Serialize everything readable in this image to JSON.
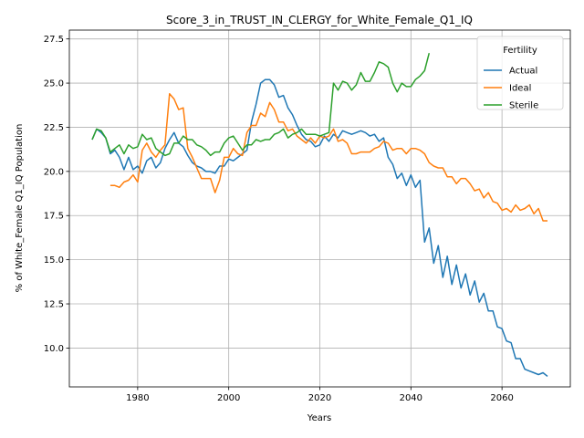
{
  "chart_data": {
    "type": "line",
    "title": "Score_3_in_TRUST_IN_CLERGY_for_White_Female_Q1_IQ",
    "xlabel": "Years",
    "ylabel": "% of White_Female Q1_IQ Population",
    "xlim": [
      1965,
      2075
    ],
    "ylim": [
      7.8,
      28.0
    ],
    "xticks": [
      1980,
      2000,
      2020,
      2040,
      2060
    ],
    "yticks": [
      10.0,
      12.5,
      15.0,
      17.5,
      20.0,
      22.5,
      25.0,
      27.5
    ],
    "xtick_labels": [
      "1980",
      "2000",
      "2020",
      "2040",
      "2060"
    ],
    "ytick_labels": [
      "10.0",
      "12.5",
      "15.0",
      "17.5",
      "20.0",
      "22.5",
      "25.0",
      "27.5"
    ],
    "grid": true,
    "legend": {
      "title": "Fertility",
      "placement": "upper right"
    },
    "series": [
      {
        "name": "Actual",
        "color": "#1f77b4",
        "x": [
          1970,
          1971,
          1972,
          1973,
          1974,
          1975,
          1976,
          1977,
          1978,
          1979,
          1980,
          1981,
          1982,
          1983,
          1984,
          1985,
          1986,
          1987,
          1988,
          1989,
          1990,
          1991,
          1992,
          1993,
          1994,
          1995,
          1996,
          1997,
          1998,
          1999,
          2000,
          2001,
          2002,
          2003,
          2004,
          2005,
          2006,
          2007,
          2008,
          2009,
          2010,
          2011,
          2012,
          2013,
          2014,
          2015,
          2016,
          2017,
          2018,
          2019,
          2020,
          2021,
          2022,
          2023,
          2024,
          2025,
          2026,
          2027,
          2028,
          2029,
          2030,
          2031,
          2032,
          2033,
          2034,
          2035,
          2036,
          2037,
          2038,
          2039,
          2040,
          2041,
          2042,
          2043,
          2044,
          2045,
          2046,
          2047,
          2048,
          2049,
          2050,
          2051,
          2052,
          2053,
          2054,
          2055,
          2056,
          2057,
          2058,
          2059,
          2060,
          2061,
          2062,
          2063,
          2064,
          2065,
          2066,
          2067,
          2068,
          2069,
          2070
        ],
        "y": [
          21.8,
          22.4,
          22.2,
          21.9,
          21.0,
          21.2,
          20.8,
          20.1,
          20.8,
          20.1,
          20.3,
          19.9,
          20.6,
          20.8,
          20.2,
          20.5,
          21.3,
          21.8,
          22.2,
          21.6,
          21.4,
          20.9,
          20.5,
          20.3,
          20.2,
          20.0,
          20.0,
          19.9,
          20.3,
          20.3,
          20.7,
          20.6,
          20.8,
          21.0,
          21.2,
          22.8,
          23.8,
          25.0,
          25.2,
          25.2,
          24.9,
          24.2,
          24.3,
          23.6,
          23.2,
          22.6,
          22.1,
          21.8,
          21.7,
          21.4,
          21.5,
          22.0,
          21.7,
          22.1,
          21.9,
          22.3,
          22.2,
          22.1,
          22.2,
          22.3,
          22.2,
          22.0,
          22.1,
          21.7,
          21.9,
          20.8,
          20.4,
          19.6,
          19.9,
          19.2,
          19.8,
          19.1,
          19.5,
          16.0,
          16.8,
          14.8,
          15.8,
          14.0,
          15.2,
          13.6,
          14.7,
          13.4,
          14.2,
          13.0,
          13.8,
          12.6,
          13.1,
          12.1,
          12.1,
          11.2,
          11.1,
          10.4,
          10.3,
          9.4,
          9.4,
          8.8,
          8.7,
          8.6,
          8.5,
          8.6,
          8.4
        ]
      },
      {
        "name": "Ideal",
        "color": "#ff7f0e",
        "x": [
          1974,
          1975,
          1976,
          1977,
          1978,
          1979,
          1980,
          1981,
          1982,
          1983,
          1984,
          1985,
          1986,
          1987,
          1988,
          1989,
          1990,
          1991,
          1992,
          1993,
          1994,
          1995,
          1996,
          1997,
          1998,
          1999,
          2000,
          2001,
          2002,
          2003,
          2004,
          2005,
          2006,
          2007,
          2008,
          2009,
          2010,
          2011,
          2012,
          2013,
          2014,
          2015,
          2016,
          2017,
          2018,
          2019,
          2020,
          2021,
          2022,
          2023,
          2024,
          2025,
          2026,
          2027,
          2028,
          2029,
          2030,
          2031,
          2032,
          2033,
          2034,
          2035,
          2036,
          2037,
          2038,
          2039,
          2040,
          2041,
          2042,
          2043,
          2044,
          2045,
          2046,
          2047,
          2048,
          2049,
          2050,
          2051,
          2052,
          2053,
          2054,
          2055,
          2056,
          2057,
          2058,
          2059,
          2060,
          2061,
          2062,
          2063,
          2064,
          2065,
          2066,
          2067,
          2068,
          2069,
          2070
        ],
        "y": [
          19.2,
          19.2,
          19.1,
          19.4,
          19.5,
          19.8,
          19.4,
          21.2,
          21.6,
          21.1,
          20.8,
          21.2,
          21.5,
          24.4,
          24.1,
          23.5,
          23.6,
          21.3,
          20.8,
          20.2,
          19.6,
          19.6,
          19.6,
          18.8,
          19.5,
          20.8,
          20.8,
          21.3,
          21.0,
          20.9,
          22.2,
          22.6,
          22.6,
          23.3,
          23.1,
          23.9,
          23.5,
          22.8,
          22.8,
          22.3,
          22.4,
          22.0,
          21.8,
          21.6,
          21.9,
          21.6,
          22.0,
          21.9,
          22.0,
          22.4,
          21.7,
          21.8,
          21.6,
          21.0,
          21.0,
          21.1,
          21.1,
          21.1,
          21.3,
          21.4,
          21.7,
          21.6,
          21.2,
          21.3,
          21.3,
          21.0,
          21.3,
          21.3,
          21.2,
          21.0,
          20.5,
          20.3,
          20.2,
          20.2,
          19.7,
          19.7,
          19.3,
          19.6,
          19.6,
          19.3,
          18.9,
          19.0,
          18.5,
          18.8,
          18.3,
          18.2,
          17.8,
          17.9,
          17.7,
          18.1,
          17.8,
          17.9,
          18.1,
          17.6,
          17.9,
          17.2,
          17.2
        ]
      },
      {
        "name": "Sterile",
        "color": "#2ca02c",
        "x": [
          1970,
          1971,
          1972,
          1973,
          1974,
          1975,
          1976,
          1977,
          1978,
          1979,
          1980,
          1981,
          1982,
          1983,
          1984,
          1985,
          1986,
          1987,
          1988,
          1989,
          1990,
          1991,
          1992,
          1993,
          1994,
          1995,
          1996,
          1997,
          1998,
          1999,
          2000,
          2001,
          2002,
          2003,
          2004,
          2005,
          2006,
          2007,
          2008,
          2009,
          2010,
          2011,
          2012,
          2013,
          2014,
          2015,
          2016,
          2017,
          2018,
          2019,
          2020,
          2021,
          2022,
          2023,
          2024,
          2025,
          2026,
          2027,
          2028,
          2029,
          2030,
          2031,
          2032,
          2033,
          2034,
          2035,
          2036,
          2037,
          2038,
          2039,
          2040,
          2041,
          2042,
          2043,
          2044
        ],
        "y": [
          21.8,
          22.4,
          22.3,
          21.9,
          21.1,
          21.3,
          21.5,
          21.0,
          21.5,
          21.3,
          21.4,
          22.1,
          21.8,
          21.9,
          21.3,
          21.1,
          20.9,
          21.0,
          21.6,
          21.6,
          22.0,
          21.8,
          21.8,
          21.5,
          21.4,
          21.2,
          20.9,
          21.1,
          21.1,
          21.6,
          21.9,
          22.0,
          21.6,
          21.2,
          21.5,
          21.5,
          21.8,
          21.7,
          21.8,
          21.8,
          22.1,
          22.2,
          22.4,
          21.9,
          22.1,
          22.2,
          22.4,
          22.1,
          22.1,
          22.1,
          22.0,
          22.1,
          22.2,
          25.0,
          24.6,
          25.1,
          25.0,
          24.6,
          24.9,
          25.6,
          25.1,
          25.1,
          25.6,
          26.2,
          26.1,
          25.9,
          25.0,
          24.5,
          25.0,
          24.8,
          24.8,
          25.2,
          25.4,
          25.7,
          26.7
        ]
      }
    ]
  }
}
